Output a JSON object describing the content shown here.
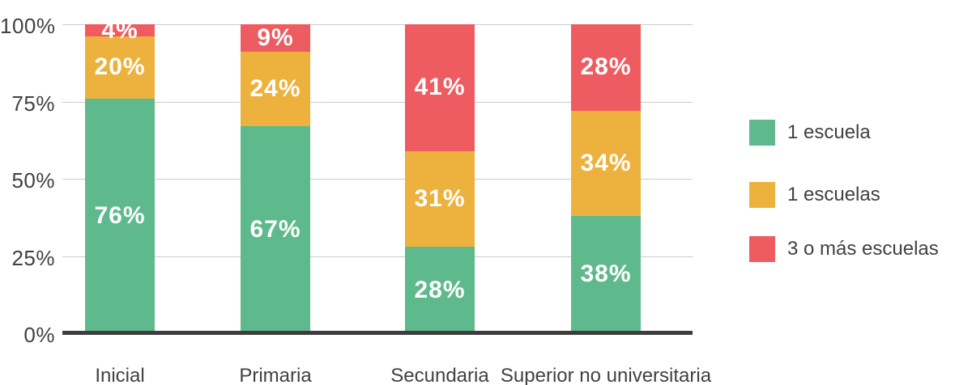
{
  "chart_data": {
    "type": "bar",
    "stacked": true,
    "orientation": "vertical",
    "title": "",
    "xlabel": "",
    "ylabel": "",
    "categories": [
      "Inicial",
      "Primaria",
      "Secundaria",
      "Superior no universitaria"
    ],
    "series": [
      {
        "name": "1 escuela",
        "color": "#5eba8c",
        "values": [
          76,
          67,
          28,
          38
        ]
      },
      {
        "name": "1 escuelas",
        "color": "#ecb23d",
        "values": [
          20,
          24,
          31,
          34
        ]
      },
      {
        "name": "3 o más escuelas",
        "color": "#ee5b60",
        "values": [
          4,
          9,
          41,
          28
        ]
      }
    ],
    "value_label_format": "percent",
    "ylim": [
      0,
      100
    ],
    "y_ticks": [
      {
        "value": 100,
        "label": "100%"
      },
      {
        "value": 75,
        "label": "75%"
      },
      {
        "value": 50,
        "label": "50%"
      },
      {
        "value": 25,
        "label": "25%"
      },
      {
        "value": 0,
        "label": "0%"
      }
    ],
    "grid": "horizontal",
    "legend_position": "right"
  },
  "legend": {
    "items": [
      {
        "label": "1 escuela",
        "color": "#5eba8c"
      },
      {
        "label": "1 escuelas",
        "color": "#ecb23d"
      },
      {
        "label": "3 o más escuelas",
        "color": "#ee5b60"
      }
    ]
  },
  "colors": {
    "green": "#5eba8c",
    "yellow": "#ecb23d",
    "red": "#ee5b60",
    "axis_text": "#414141",
    "axis_line": "#3d3d3d",
    "gridline": "#cccccc",
    "bar_label_text": "#ffffff",
    "background": "#ffffff"
  }
}
